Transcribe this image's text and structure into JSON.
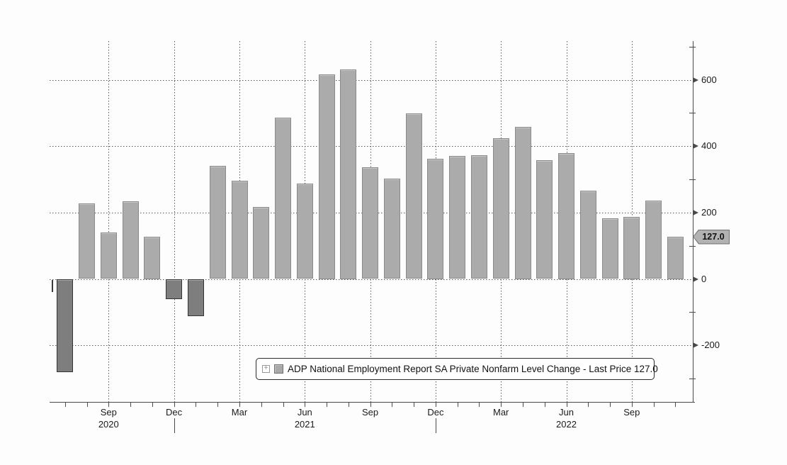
{
  "chart_data": {
    "type": "bar",
    "title": "ADP National Employment Report SA Private Nonfarm Level Change",
    "legend": {
      "label": "ADP National Employment Report SA Private Nonfarm Level Change - Last Price 127.0"
    },
    "last_price": {
      "value": 127.0,
      "label": "127.0"
    },
    "y_axis": {
      "major_ticks": [
        600,
        400,
        200,
        0,
        -200
      ],
      "minor_ticks": [
        700,
        500,
        300,
        100,
        -100,
        -300
      ],
      "range": [
        -363,
        712
      ],
      "grid": "dotted"
    },
    "x_axis": {
      "tick_labels": [
        {
          "month": "Sep",
          "year": "2020",
          "bar_index": 2
        },
        {
          "month": "Dec",
          "bar_index": 5,
          "year_divider": true
        },
        {
          "month": "Mar",
          "bar_index": 8
        },
        {
          "month": "Jun",
          "year": "2021",
          "bar_index": 11
        },
        {
          "month": "Sep",
          "bar_index": 14
        },
        {
          "month": "Dec",
          "bar_index": 17,
          "year_divider": true
        },
        {
          "month": "Mar",
          "bar_index": 20
        },
        {
          "month": "Jun",
          "year": "2022",
          "bar_index": 23
        },
        {
          "month": "Sep",
          "bar_index": 26
        }
      ]
    },
    "bars": [
      {
        "month": "Jul 2020",
        "value": -280
      },
      {
        "month": "Aug 2020",
        "value": 227
      },
      {
        "month": "Sep 2020",
        "value": 139
      },
      {
        "month": "Oct 2020",
        "value": 233
      },
      {
        "month": "Nov 2020",
        "value": 127
      },
      {
        "month": "Dec 2020",
        "value": -60
      },
      {
        "month": "Jan 2021",
        "value": -111
      },
      {
        "month": "Feb 2021",
        "value": 340
      },
      {
        "month": "Mar 2021",
        "value": 295
      },
      {
        "month": "Apr 2021",
        "value": 216
      },
      {
        "month": "May 2021",
        "value": 486
      },
      {
        "month": "Jun 2021",
        "value": 287
      },
      {
        "month": "Jul 2021",
        "value": 616
      },
      {
        "month": "Aug 2021",
        "value": 632
      },
      {
        "month": "Sep 2021",
        "value": 336
      },
      {
        "month": "Oct 2021",
        "value": 302
      },
      {
        "month": "Nov 2021",
        "value": 498
      },
      {
        "month": "Dec 2021",
        "value": 363
      },
      {
        "month": "Jan 2022",
        "value": 370
      },
      {
        "month": "Feb 2022",
        "value": 372
      },
      {
        "month": "Mar 2022",
        "value": 424
      },
      {
        "month": "Apr 2022",
        "value": 458
      },
      {
        "month": "May 2022",
        "value": 357
      },
      {
        "month": "Jun 2022",
        "value": 379
      },
      {
        "month": "Jul 2022",
        "value": 265
      },
      {
        "month": "Aug 2022",
        "value": 182
      },
      {
        "month": "Sep 2022",
        "value": 188
      },
      {
        "month": "Oct 2022",
        "value": 235
      },
      {
        "month": "Nov 2022",
        "value": 127
      }
    ],
    "colors": {
      "positive_fill": "#ababab",
      "positive_border": "#8a8a8a",
      "negative_fill": "#7e7e7e",
      "negative_border": "#333333",
      "grid": "#5a5a5a",
      "axis": "#4a4a4a",
      "text": "#1a1a1a",
      "price_tag_fill": "#b2b2b2",
      "price_tag_border": "#6f6f6f"
    }
  }
}
